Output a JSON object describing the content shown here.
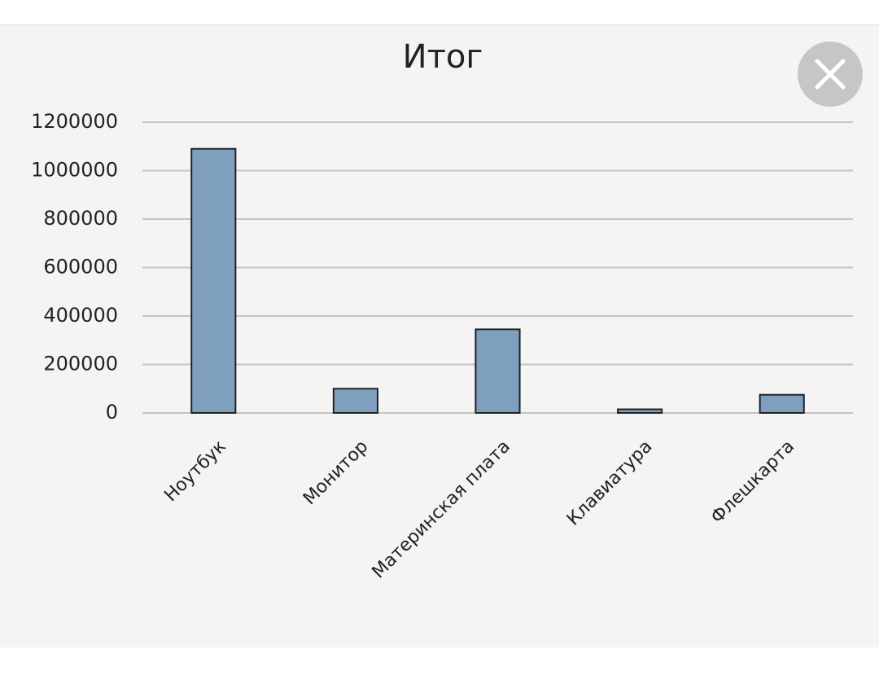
{
  "chart_data": {
    "type": "bar",
    "title": "Итог",
    "categories": [
      "Ноутбук",
      "Монитор",
      "Материнская плата",
      "Клавиатура",
      "Флешкарта"
    ],
    "values": [
      1090000,
      100000,
      345000,
      15000,
      75000
    ],
    "color": "#7f9fbf",
    "ylim": [
      0,
      1200000
    ],
    "yticks": [
      0,
      200000,
      400000,
      600000,
      800000,
      1000000,
      1200000
    ],
    "grid": true
  }
}
